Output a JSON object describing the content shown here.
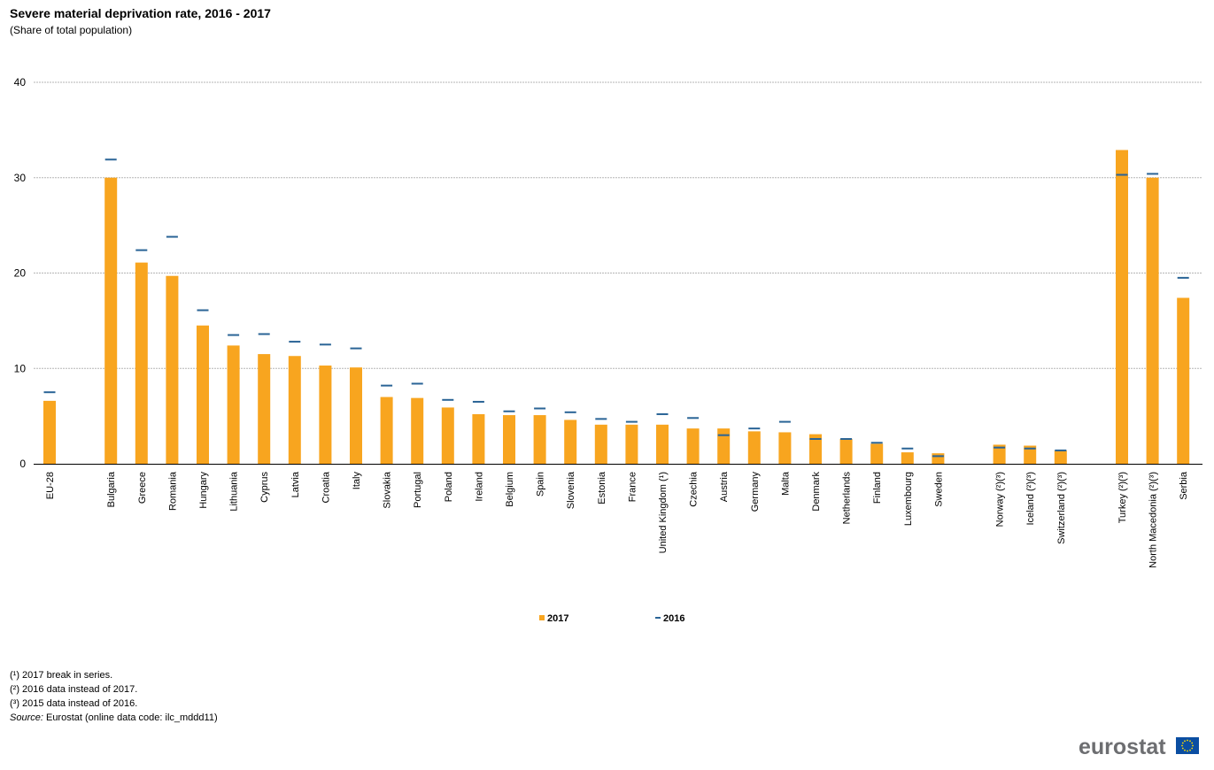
{
  "chart_data": {
    "type": "bar",
    "title": "Severe material deprivation rate, 2016 - 2017",
    "subtitle": "(Share  of total population)",
    "ylim": [
      0,
      40
    ],
    "yticks": [
      0,
      10,
      20,
      30,
      40
    ],
    "grid": true,
    "legend_position": "bottom-center",
    "categories": [
      "EU-28",
      "Bulgaria",
      "Greece",
      "Romania",
      "Hungary",
      "Lithuania",
      "Cyprus",
      "Latvia",
      "Croatia",
      "Italy",
      "Slovakia",
      "Portugal",
      "Poland",
      "Ireland",
      "Belgium",
      "Spain",
      "Slovenia",
      "Estonia",
      "France",
      "United Kingdom (¹)",
      "Czechia",
      "Austria",
      "Germany",
      "Malta",
      "Denmark",
      "Netherlands",
      "Finland",
      "Luxembourg",
      "Sweden",
      "Norway (²)(³)",
      "Iceland (²)(³)",
      "Switzerland (²)(³)",
      "Turkey (²)(³)",
      "North Macedonia (²)(³)",
      "Serbia"
    ],
    "groups": [
      [
        0
      ],
      [
        1,
        28
      ],
      [
        29,
        31
      ],
      [
        32,
        34
      ]
    ],
    "series": [
      {
        "name": "2017",
        "type": "bar",
        "color": "#f8a51f",
        "values": [
          6.6,
          30.0,
          21.1,
          19.7,
          14.5,
          12.4,
          11.5,
          11.3,
          10.3,
          10.1,
          7.0,
          6.9,
          5.9,
          5.2,
          5.1,
          5.1,
          4.6,
          4.1,
          4.1,
          4.1,
          3.7,
          3.7,
          3.4,
          3.3,
          3.1,
          2.6,
          2.1,
          1.2,
          1.1,
          2.0,
          1.9,
          1.4,
          32.9,
          30.0,
          17.4
        ]
      },
      {
        "name": "2016",
        "type": "marker",
        "color": "#2a6496",
        "values": [
          7.5,
          31.9,
          22.4,
          23.8,
          16.1,
          13.5,
          13.6,
          12.8,
          12.5,
          12.1,
          8.2,
          8.4,
          6.7,
          6.5,
          5.5,
          5.8,
          5.4,
          4.7,
          4.4,
          5.2,
          4.8,
          3.0,
          3.7,
          4.4,
          2.6,
          2.6,
          2.2,
          1.6,
          0.8,
          1.7,
          1.6,
          1.4,
          30.3,
          30.4,
          19.5
        ]
      }
    ]
  },
  "footnotes": [
    "(¹) 2017 break in series.",
    "(²) 2016 data instead of 2017.",
    "(³) 2015 data instead of 2016."
  ],
  "source": {
    "label": "Source:",
    "text": " Eurostat (online data code: ilc_mddd11)"
  },
  "logo": {
    "text": "eurostat"
  }
}
